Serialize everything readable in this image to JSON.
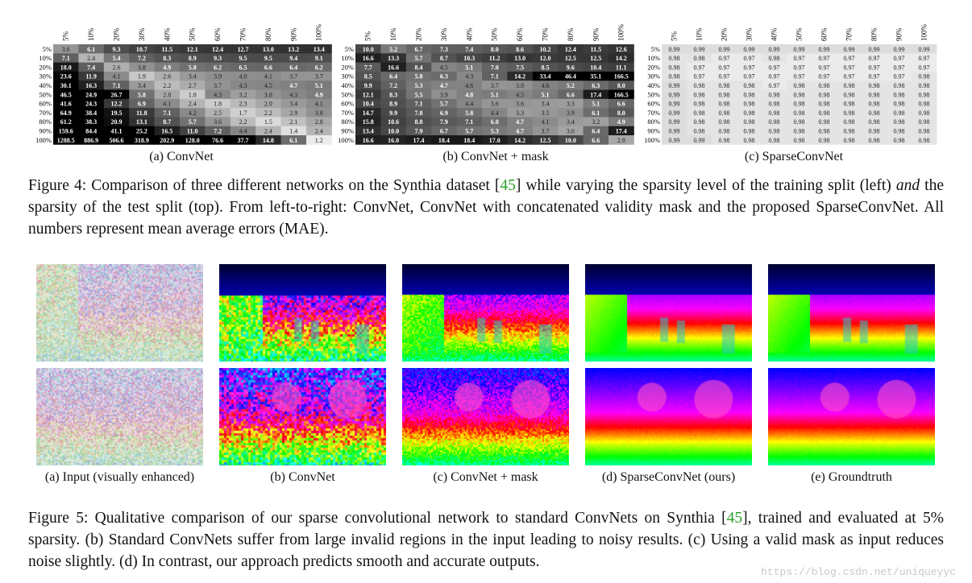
{
  "row_labels": [
    "5%",
    "10%",
    "20%",
    "30%",
    "40%",
    "50%",
    "60%",
    "70%",
    "80%",
    "90%",
    "100%"
  ],
  "col_labels": [
    "5%",
    "10%",
    "20%",
    "30%",
    "40%",
    "50%",
    "60%",
    "70%",
    "80%",
    "90%",
    "100%"
  ],
  "chart_data": [
    {
      "type": "heatmap",
      "caption": "(a) ConvNet",
      "rows": [
        "5%",
        "10%",
        "20%",
        "30%",
        "40%",
        "50%",
        "60%",
        "70%",
        "80%",
        "90%",
        "100%"
      ],
      "cols": [
        "5%",
        "10%",
        "20%",
        "30%",
        "40%",
        "50%",
        "60%",
        "70%",
        "80%",
        "90%",
        "100%"
      ],
      "values": [
        [
          "3.6",
          "6.1",
          "9.3",
          "10.7",
          "11.5",
          "12.1",
          "12.4",
          "12.7",
          "13.0",
          "13.2",
          "13.4"
        ],
        [
          "7.1",
          "2.4",
          "5.4",
          "7.2",
          "8.3",
          "8.9",
          "9.3",
          "9.5",
          "9.5",
          "9.4",
          "9.1"
        ],
        [
          "18.0",
          "7.4",
          "2.6",
          "3.8",
          "4.9",
          "5.8",
          "6.2",
          "6.5",
          "6.6",
          "6.4",
          "6.2"
        ],
        [
          "23.6",
          "11.9",
          "4.1",
          "1.9",
          "2.6",
          "3.4",
          "3.9",
          "4.0",
          "4.1",
          "3.7",
          "3.7"
        ],
        [
          "30.1",
          "16.3",
          "7.1",
          "3.4",
          "2.2",
          "2.7",
          "3.7",
          "4.3",
          "4.5",
          "4.7",
          "5.1"
        ],
        [
          "46.5",
          "24.9",
          "26.7",
          "5.8",
          "2.8",
          "1.8",
          "4.3",
          "3.2",
          "3.8",
          "4.3",
          "4.9"
        ],
        [
          "41.6",
          "24.3",
          "12.2",
          "6.9",
          "4.1",
          "2.4",
          "1.8",
          "2.3",
          "2.9",
          "3.4",
          "4.1"
        ],
        [
          "64.9",
          "38.4",
          "19.5",
          "11.8",
          "7.1",
          "4.2",
          "2.5",
          "1.7",
          "2.2",
          "2.9",
          "3.8"
        ],
        [
          "61.2",
          "38.3",
          "20.9",
          "13.1",
          "8.7",
          "5.7",
          "3.6",
          "2.2",
          "1.5",
          "2.1",
          "2.8"
        ],
        [
          "159.6",
          "84.4",
          "41.1",
          "25.2",
          "16.5",
          "11.0",
          "7.2",
          "4.4",
          "2.4",
          "1.4",
          "2.4"
        ],
        [
          "1288.5",
          "886.9",
          "506.6",
          "318.9",
          "202.9",
          "128.0",
          "76.6",
          "37.7",
          "14.8",
          "6.1",
          "1.2"
        ]
      ]
    },
    {
      "type": "heatmap",
      "caption": "(b) ConvNet + mask",
      "rows": [
        "5%",
        "10%",
        "20%",
        "30%",
        "40%",
        "50%",
        "60%",
        "70%",
        "80%",
        "90%",
        "100%"
      ],
      "cols": [
        "5%",
        "10%",
        "20%",
        "30%",
        "40%",
        "50%",
        "60%",
        "70%",
        "80%",
        "90%",
        "100%"
      ],
      "values": [
        [
          "10.0",
          "5.2",
          "6.7",
          "7.3",
          "7.4",
          "8.0",
          "8.6",
          "10.2",
          "12.4",
          "11.5",
          "12.6"
        ],
        [
          "16.6",
          "13.3",
          "5.7",
          "8.7",
          "10.3",
          "11.2",
          "13.0",
          "12.0",
          "12.5",
          "12.5",
          "14.2"
        ],
        [
          "7.7",
          "16.6",
          "8.4",
          "4.5",
          "5.1",
          "7.0",
          "7.5",
          "8.5",
          "9.6",
          "10.4",
          "11.1"
        ],
        [
          "8.5",
          "6.4",
          "5.8",
          "6.3",
          "4.3",
          "7.1",
          "14.2",
          "33.4",
          "46.4",
          "35.1",
          "166.5"
        ],
        [
          "9.9",
          "7.2",
          "5.3",
          "4.7",
          "4.6",
          "3.7",
          "3.8",
          "4.6",
          "5.2",
          "6.3",
          "8.0"
        ],
        [
          "12.1",
          "8.3",
          "5.5",
          "3.9",
          "4.8",
          "5.1",
          "4.5",
          "5.1",
          "6.6",
          "17.4",
          "166.5"
        ],
        [
          "10.4",
          "8.9",
          "7.1",
          "5.7",
          "4.4",
          "3.6",
          "3.6",
          "3.4",
          "3.3",
          "5.1",
          "6.6"
        ],
        [
          "14.7",
          "9.9",
          "7.8",
          "6.9",
          "5.8",
          "4.4",
          "3.3",
          "3.5",
          "3.9",
          "6.1",
          "8.0"
        ],
        [
          "15.8",
          "10.6",
          "8.8",
          "7.9",
          "7.1",
          "6.0",
          "4.7",
          "4.1",
          "3.4",
          "3.2",
          "4.9"
        ],
        [
          "13.4",
          "10.0",
          "7.9",
          "6.7",
          "5.7",
          "5.3",
          "4.7",
          "3.7",
          "3.0",
          "6.4",
          "17.4"
        ],
        [
          "16.6",
          "16.0",
          "17.4",
          "18.4",
          "18.4",
          "17.0",
          "14.2",
          "12.5",
          "10.0",
          "6.6",
          "2.9"
        ]
      ]
    },
    {
      "type": "heatmap",
      "caption": "(c) SparseConvNet",
      "rows": [
        "5%",
        "10%",
        "20%",
        "30%",
        "40%",
        "50%",
        "60%",
        "70%",
        "80%",
        "90%",
        "100%"
      ],
      "cols": [
        "5%",
        "10%",
        "20%",
        "30%",
        "40%",
        "50%",
        "60%",
        "70%",
        "80%",
        "90%",
        "100%"
      ],
      "values": [
        [
          "0.99",
          "0.99",
          "0.99",
          "0.99",
          "0.99",
          "0.99",
          "0.99",
          "0.99",
          "0.99",
          "0.99",
          "0.99"
        ],
        [
          "0.98",
          "0.98",
          "0.97",
          "0.97",
          "0.98",
          "0.97",
          "0.97",
          "0.97",
          "0.97",
          "0.97",
          "0.97"
        ],
        [
          "0.98",
          "0.97",
          "0.97",
          "0.97",
          "0.97",
          "0.97",
          "0.97",
          "0.97",
          "0.97",
          "0.97",
          "0.97"
        ],
        [
          "0.98",
          "0.97",
          "0.97",
          "0.97",
          "0.97",
          "0.97",
          "0.97",
          "0.97",
          "0.97",
          "0.97",
          "0.98"
        ],
        [
          "0.99",
          "0.98",
          "0.98",
          "0.98",
          "0.97",
          "0.98",
          "0.98",
          "0.98",
          "0.98",
          "0.98",
          "0.98"
        ],
        [
          "0.99",
          "0.98",
          "0.98",
          "0.98",
          "0.98",
          "0.98",
          "0.98",
          "0.98",
          "0.98",
          "0.98",
          "0.98"
        ],
        [
          "0.99",
          "0.98",
          "0.98",
          "0.98",
          "0.98",
          "0.98",
          "0.98",
          "0.98",
          "0.98",
          "0.98",
          "0.98"
        ],
        [
          "0.99",
          "0.98",
          "0.98",
          "0.98",
          "0.98",
          "0.98",
          "0.98",
          "0.98",
          "0.98",
          "0.98",
          "0.98"
        ],
        [
          "0.99",
          "0.98",
          "0.98",
          "0.98",
          "0.98",
          "0.98",
          "0.98",
          "0.98",
          "0.98",
          "0.98",
          "0.98"
        ],
        [
          "0.99",
          "0.98",
          "0.98",
          "0.98",
          "0.98",
          "0.98",
          "0.98",
          "0.98",
          "0.98",
          "0.98",
          "0.98"
        ],
        [
          "0.99",
          "0.99",
          "0.98",
          "0.98",
          "0.98",
          "0.98",
          "0.98",
          "0.98",
          "0.98",
          "0.98",
          "0.98"
        ]
      ]
    }
  ],
  "figure4": {
    "caption_pre": "Figure 4: Comparison of three different networks on the Synthia dataset [",
    "ref": "45",
    "caption_mid1": "] while varying the sparsity level of the training split (left) ",
    "caption_em": "and",
    "caption_post": " the sparsity of the test split (top). From left-to-right: ConvNet, ConvNet with concatenated validity mask and the proposed SparseConvNet. All numbers represent mean average errors (MAE)."
  },
  "figure5": {
    "subcaptions": [
      "(a) Input (visually enhanced)",
      "(b) ConvNet",
      "(c) ConvNet + mask",
      "(d) SparseConvNet (ours)",
      "(e) Groundtruth"
    ],
    "caption_pre": "Figure 5: Qualitative comparison of our sparse convolutional network to standard ConvNets on Synthia [",
    "ref": "45",
    "caption_post": "], trained and evaluated at 5% sparsity. (b) Standard ConvNets suffer from large invalid regions in the input leading to noisy results. (c) Using a valid mask as input reduces noise slightly. (d) In contrast, our approach predicts smooth and accurate outputs."
  },
  "watermark": "https://blog.csdn.net/uniqueyyc"
}
